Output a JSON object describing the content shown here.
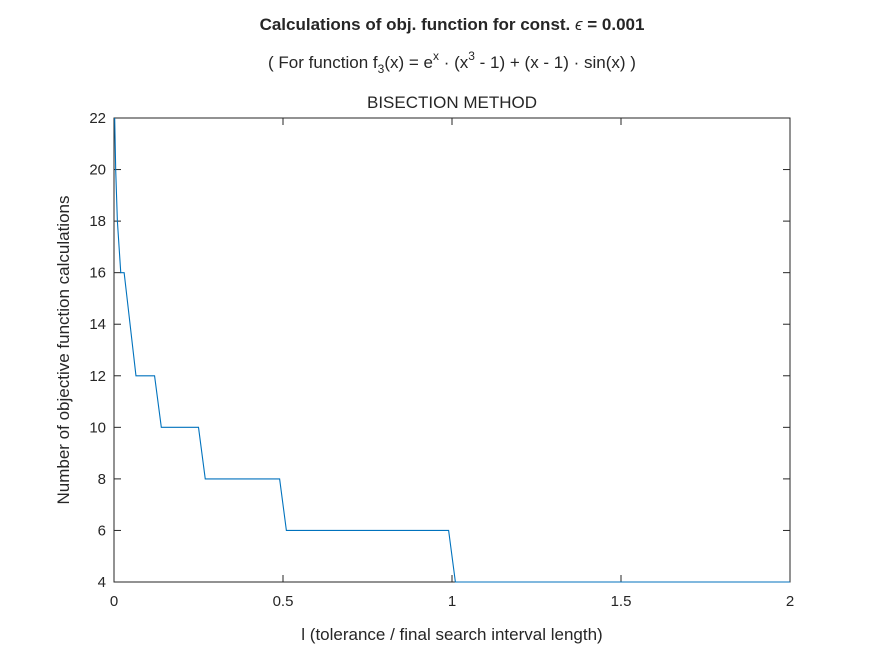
{
  "title": {
    "line1_prefix": "Calculations of obj. function for const. ",
    "line1_symbol": "ϵ",
    "line1_suffix": " = 0.001",
    "line2": {
      "p1": "( For function f",
      "sub3": "3",
      "p2": "(x) = e",
      "supx": "x",
      "p3": " · (x",
      "sup3": "3",
      "p4": " - 1) + (x - 1) · sin(x) )"
    },
    "line3": "BISECTION METHOD"
  },
  "chart_data": {
    "type": "line",
    "title": "Calculations of obj. function for const. ϵ = 0.001",
    "subtitle": "( For function f3(x) = e^x · (x^3 - 1) + (x - 1) · sin(x) ) BISECTION METHOD",
    "xlabel": "l (tolerance / final search interval length)",
    "ylabel": "Number of objective function calculations",
    "xlim": [
      0,
      2
    ],
    "ylim": [
      4,
      22
    ],
    "xticks": [
      "0",
      "0.5",
      "1",
      "1.5",
      "2"
    ],
    "yticks": [
      "4",
      "6",
      "8",
      "10",
      "12",
      "14",
      "16",
      "18",
      "20",
      "22"
    ],
    "grid": false,
    "line_color": "#0072bd",
    "series": [
      {
        "x": [
          0.002,
          0.005,
          0.01,
          0.02,
          0.03,
          0.065,
          0.12,
          0.14,
          0.25,
          0.27,
          0.49,
          0.51,
          0.99,
          1.01,
          2.0
        ],
        "y": [
          22,
          20,
          18,
          16,
          16,
          12,
          12,
          10,
          10,
          8,
          8,
          6,
          6,
          4,
          4
        ]
      }
    ]
  }
}
